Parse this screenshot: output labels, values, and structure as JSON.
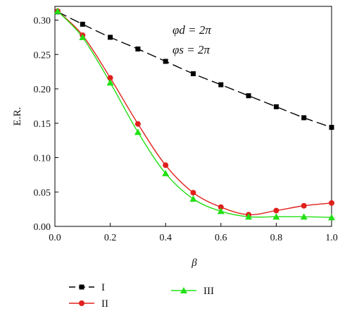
{
  "chart_data": {
    "type": "line",
    "xlabel": "β",
    "ylabel": "E.R.",
    "xlim": [
      0.0,
      1.0
    ],
    "ylim": [
      0.0,
      0.32
    ],
    "xticks": [
      "0.0",
      "0.2",
      "0.4",
      "0.6",
      "0.8",
      "1.0"
    ],
    "yticks": [
      "0.00",
      "0.05",
      "0.10",
      "0.15",
      "0.20",
      "0.25",
      "0.30"
    ],
    "annotations": [
      "φd = 2π",
      "φs = 2π"
    ],
    "legend_position": "bottom",
    "series": [
      {
        "name": "I",
        "color": "#000000",
        "marker": "square",
        "dash": "long-dash",
        "x": [
          0.01,
          0.1,
          0.2,
          0.3,
          0.4,
          0.5,
          0.6,
          0.7,
          0.8,
          0.9,
          1.0
        ],
        "y": [
          0.312,
          0.294,
          0.275,
          0.258,
          0.24,
          0.222,
          0.206,
          0.19,
          0.174,
          0.158,
          0.144
        ]
      },
      {
        "name": "II",
        "color": "#e0201c",
        "marker": "circle",
        "dash": "solid",
        "x": [
          0.01,
          0.1,
          0.2,
          0.3,
          0.4,
          0.5,
          0.6,
          0.7,
          0.8,
          0.9,
          1.0
        ],
        "y": [
          0.313,
          0.278,
          0.216,
          0.149,
          0.089,
          0.049,
          0.028,
          0.017,
          0.023,
          0.03,
          0.034
        ]
      },
      {
        "name": "III",
        "color": "#22e014",
        "marker": "triangle",
        "dash": "solid",
        "x": [
          0.01,
          0.1,
          0.2,
          0.3,
          0.4,
          0.5,
          0.6,
          0.7,
          0.8,
          0.9,
          1.0
        ],
        "y": [
          0.313,
          0.275,
          0.209,
          0.137,
          0.077,
          0.04,
          0.022,
          0.014,
          0.014,
          0.014,
          0.013
        ]
      }
    ]
  }
}
